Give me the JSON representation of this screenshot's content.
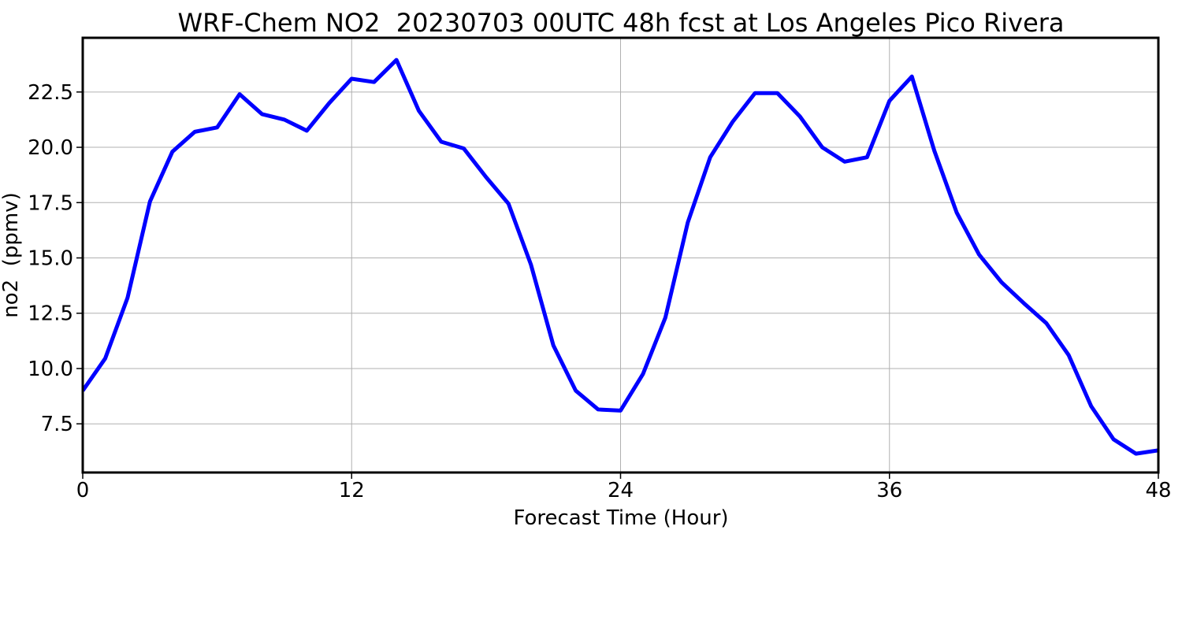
{
  "chart_data": {
    "type": "line",
    "title": "WRF-Chem NO2  20230703 00UTC 48h fcst at Los Angeles Pico Rivera",
    "xlabel": "Forecast Time (Hour)",
    "ylabel": "no2  (ppmv)",
    "xlim": [
      0,
      48
    ],
    "ylim": [
      5.3,
      24.95
    ],
    "xticks": [
      0,
      12,
      24,
      36,
      48
    ],
    "xtick_labels": [
      "0",
      "12",
      "24",
      "36",
      "48"
    ],
    "yticks": [
      7.5,
      10.0,
      12.5,
      15.0,
      17.5,
      20.0,
      22.5
    ],
    "ytick_labels": [
      "7.5",
      "10.0",
      "12.5",
      "15.0",
      "17.5",
      "20.0",
      "22.5"
    ],
    "grid": true,
    "series": [
      {
        "color": "#0000ff",
        "x": [
          0,
          1,
          2,
          3,
          4,
          5,
          6,
          7,
          8,
          9,
          10,
          11,
          12,
          13,
          14,
          15,
          16,
          17,
          18,
          19,
          20,
          21,
          22,
          23,
          24,
          25,
          26,
          27,
          28,
          29,
          30,
          31,
          32,
          33,
          34,
          35,
          36,
          37,
          38,
          39,
          40,
          41,
          42,
          43,
          44,
          45,
          46,
          47,
          48
        ],
        "values": [
          9.0,
          10.45,
          13.2,
          17.55,
          19.8,
          20.7,
          20.9,
          22.4,
          21.5,
          21.25,
          20.75,
          22.0,
          23.1,
          22.95,
          23.95,
          21.65,
          20.25,
          19.95,
          18.65,
          17.45,
          14.7,
          11.05,
          9.0,
          8.15,
          8.1,
          9.75,
          12.3,
          16.6,
          19.55,
          21.15,
          22.45,
          22.45,
          21.4,
          20.0,
          19.35,
          19.55,
          22.1,
          23.2,
          19.85,
          17.05,
          15.15,
          13.9,
          12.95,
          12.05,
          10.6,
          8.3,
          6.8,
          6.15,
          6.3
        ]
      }
    ]
  }
}
